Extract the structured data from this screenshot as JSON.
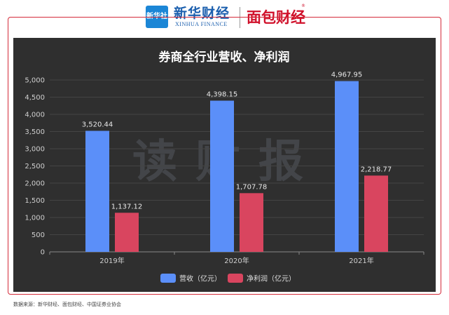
{
  "header": {
    "xinhua_logo_text": "新华社",
    "xinhua_name": "新华财经",
    "xinhua_en": "XINHUA FINANCE",
    "mianbao_name": "面包财经",
    "mianbao_mark": "®"
  },
  "watermark": "读财报",
  "source_note": "数据来源：新华财经、面包财经、中国证券业协会",
  "colors": {
    "panel_bg": "#2f2f2f",
    "revenue": "#5b8ff9",
    "net_profit": "#d9455f",
    "frame": "#d42b3a"
  },
  "chart_data": {
    "type": "bar",
    "title": "券商全行业营收、净利润",
    "categories": [
      "2019年",
      "2020年",
      "2021年"
    ],
    "series": [
      {
        "name": "营收（亿元）",
        "values": [
          3520.44,
          4398.15,
          4967.95
        ],
        "labels": [
          "3,520.44",
          "4,398.15",
          "4,967.95"
        ]
      },
      {
        "name": "净利润（亿元）",
        "values": [
          1137.12,
          1707.78,
          2218.77
        ],
        "labels": [
          "1,137.12",
          "1,707.78",
          "2,218.77"
        ]
      }
    ],
    "ylim": [
      0,
      5000
    ],
    "yticks": [
      0,
      500,
      1000,
      1500,
      2000,
      2500,
      3000,
      3500,
      4000,
      4500,
      5000
    ],
    "ytick_labels": [
      "0",
      "500",
      "1,000",
      "1,500",
      "2,000",
      "2,500",
      "3,000",
      "3,500",
      "4,000",
      "4,500",
      "5,000"
    ],
    "grid": true,
    "legend_position": "bottom-center"
  }
}
